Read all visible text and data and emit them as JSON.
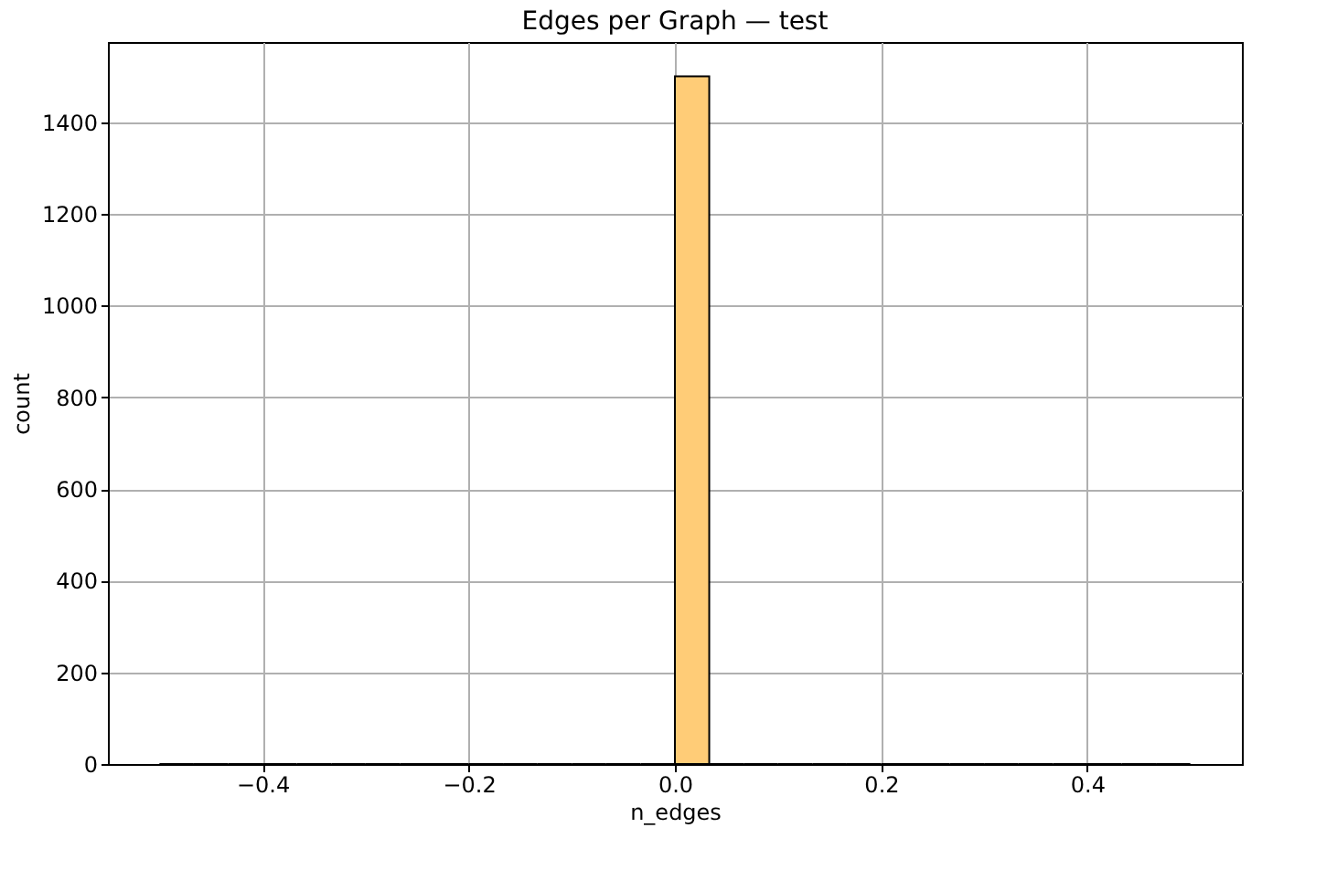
{
  "chart_data": {
    "type": "histogram",
    "title": "Edges per Graph — test",
    "xlabel": "n_edges",
    "ylabel": "count",
    "bins": [
      -0.5,
      -0.4667,
      -0.4333,
      -0.4,
      -0.3667,
      -0.3333,
      -0.3,
      -0.2667,
      -0.2333,
      -0.2,
      -0.1667,
      -0.1333,
      -0.1,
      -0.0667,
      -0.0333,
      0,
      0.0333,
      0.0667,
      0.1,
      0.1333,
      0.1667,
      0.2,
      0.2333,
      0.2667,
      0.3,
      0.3333,
      0.3667,
      0.4,
      0.4333,
      0.4667,
      0.5
    ],
    "values": [
      0,
      0,
      0,
      0,
      0,
      0,
      0,
      0,
      0,
      0,
      0,
      0,
      0,
      0,
      0,
      1500,
      0,
      0,
      0,
      0,
      0,
      0,
      0,
      0,
      0,
      0,
      0,
      0,
      0,
      0
    ],
    "color": "#ffcc77",
    "xlim": [
      -0.55,
      0.55
    ],
    "xticks": [
      {
        "value": -0.4,
        "label": "−0.4"
      },
      {
        "value": -0.2,
        "label": "−0.2"
      },
      {
        "value": 0,
        "label": "0.0"
      },
      {
        "value": 0.2,
        "label": "0.2"
      },
      {
        "value": 0.4,
        "label": "0.4"
      }
    ],
    "ylim": [
      0,
      1575
    ],
    "yticks": [
      0,
      200,
      400,
      600,
      800,
      1000,
      1200,
      1400
    ],
    "grid": true
  }
}
